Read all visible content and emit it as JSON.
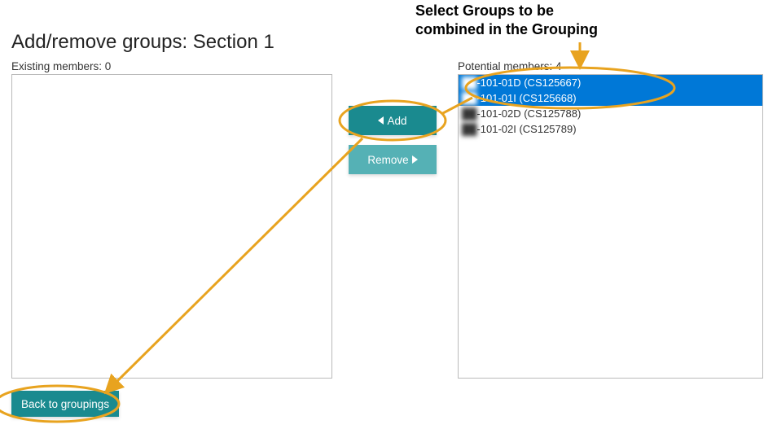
{
  "title": "Add/remove groups: Section 1",
  "existing": {
    "label": "Existing members: 0",
    "items": []
  },
  "potential": {
    "label": "Potential members: 4",
    "items": [
      {
        "prefix": "██",
        "text": "-101-01D (CS125667)",
        "selected": true
      },
      {
        "prefix": "██",
        "text": "-101-01I (CS125668)",
        "selected": true
      },
      {
        "prefix": "██",
        "text": "-101-02D (CS125788)",
        "selected": false
      },
      {
        "prefix": "██",
        "text": "-101-02I (CS125789)",
        "selected": false
      }
    ]
  },
  "buttons": {
    "add": "Add",
    "remove": "Remove",
    "back": "Back to groupings"
  },
  "annotation": {
    "line1": "Select Groups to be",
    "line2": "combined in the Grouping",
    "color": "#e8a31f",
    "stroke_width": 3
  }
}
